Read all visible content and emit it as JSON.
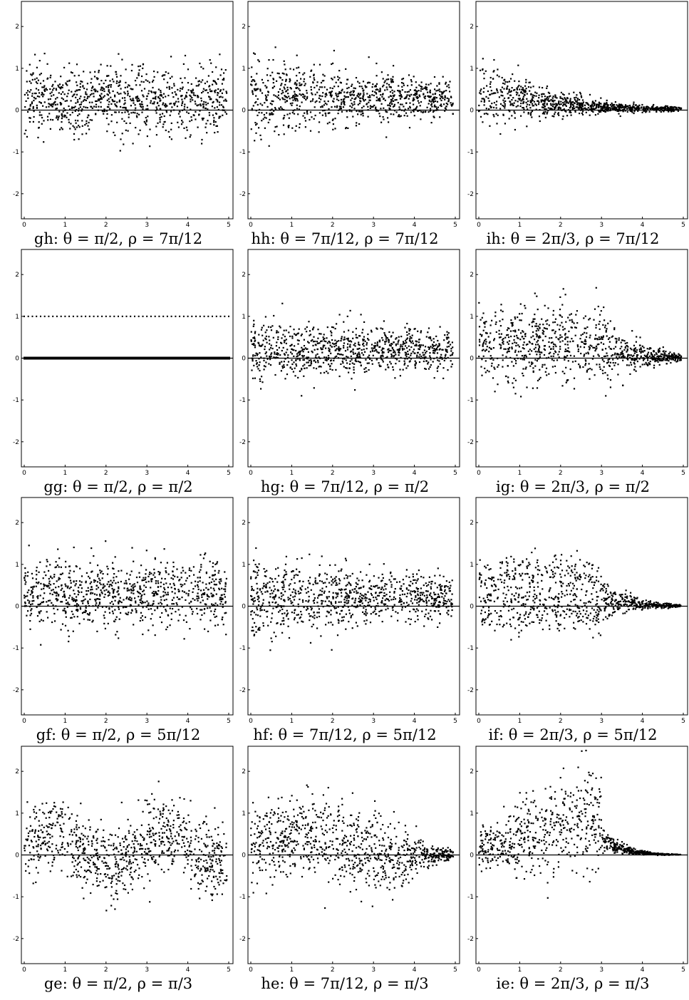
{
  "figure": {
    "panels": [
      {
        "id": "gh",
        "caption": "gh:  θ = π/2,  ρ = 7π/12",
        "theta": "π/2",
        "rho": "7π/12"
      },
      {
        "id": "hh",
        "caption": "hh:  θ = 7π/12,  ρ = 7π/12",
        "theta": "7π/12",
        "rho": "7π/12"
      },
      {
        "id": "ih",
        "caption": "ih:  θ = 2π/3,  ρ = 7π/12",
        "theta": "2π/3",
        "rho": "7π/12"
      },
      {
        "id": "gg",
        "caption": "gg:  θ = π/2,  ρ = π/2",
        "theta": "π/2",
        "rho": "π/2"
      },
      {
        "id": "hg",
        "caption": "hg:  θ = 7π/12,  ρ = π/2",
        "theta": "7π/12",
        "rho": "π/2"
      },
      {
        "id": "ig",
        "caption": "ig:  θ = 2π/3,  ρ = π/2",
        "theta": "2π/3",
        "rho": "π/2"
      },
      {
        "id": "gf",
        "caption": "gf:  θ = π/2,  ρ = 5π/12",
        "theta": "π/2",
        "rho": "5π/12"
      },
      {
        "id": "hf",
        "caption": "hf:  θ = 7π/12,  ρ = 5π/12",
        "theta": "7π/12",
        "rho": "5π/12"
      },
      {
        "id": "if",
        "caption": "if:  θ = 2π/3,  ρ = 5π/12",
        "theta": "2π/3",
        "rho": "5π/12"
      },
      {
        "id": "ge",
        "caption": "ge:  θ = π/2,  ρ = π/3",
        "theta": "π/2",
        "rho": "π/3"
      },
      {
        "id": "he",
        "caption": "he:  θ = 7π/12,  ρ = π/3",
        "theta": "7π/12",
        "rho": "π/3"
      },
      {
        "id": "ie",
        "caption": "ie:  θ = 2π/3,  ρ = π/3",
        "theta": "2π/3",
        "rho": "π/3"
      }
    ]
  },
  "chart_data": {
    "type": "scatter",
    "xlim": [
      0,
      5
    ],
    "ylim": [
      -2.6,
      2.6
    ],
    "x_ticks": [
      "0",
      "1",
      "2",
      "3",
      "4",
      "5"
    ],
    "y_ticks": [
      "-2",
      "-1",
      "0",
      "1",
      "2"
    ],
    "x_tick_values": [
      0,
      1,
      2,
      3,
      4,
      5
    ],
    "y_tick_values": [
      -2,
      -1,
      0,
      1,
      2
    ],
    "grid": false,
    "reference_line_y": 0,
    "marker_color": "#000000",
    "n_points_per_panel": 900,
    "panel_shapes": {
      "gh": {
        "kind": "band",
        "center": 0.25,
        "spread": 0.45,
        "decay": 0
      },
      "hh": {
        "kind": "decay",
        "center": 0.3,
        "spread": 0.5,
        "decay": 0.35
      },
      "ih": {
        "kind": "decay-fast",
        "center": 0.5,
        "spread": 0.55,
        "decay": 0.8
      },
      "gg": {
        "kind": "two-lines",
        "levels": [
          0,
          1
        ]
      },
      "hg": {
        "kind": "decay",
        "center": 0.2,
        "spread": 0.45,
        "decay": 0.3
      },
      "ig": {
        "kind": "decay-late",
        "center": 0.3,
        "spread": 0.5,
        "decay": 0.9
      },
      "gf": {
        "kind": "band",
        "center": 0.3,
        "spread": 0.45,
        "decay": 0
      },
      "hf": {
        "kind": "decay",
        "center": 0.2,
        "spread": 0.5,
        "decay": 0.3
      },
      "if": {
        "kind": "split",
        "center": 0.35,
        "spread": 0.5,
        "decay": 1.2
      },
      "ge": {
        "kind": "wavy",
        "center": 0.15,
        "spread": 0.5,
        "decay": 0
      },
      "he": {
        "kind": "hump",
        "center": 0.15,
        "spread": 0.5,
        "decay": 0.8
      },
      "ie": {
        "kind": "spike",
        "center": 0.25,
        "spread": 0.55,
        "decay": 1.5
      }
    }
  }
}
